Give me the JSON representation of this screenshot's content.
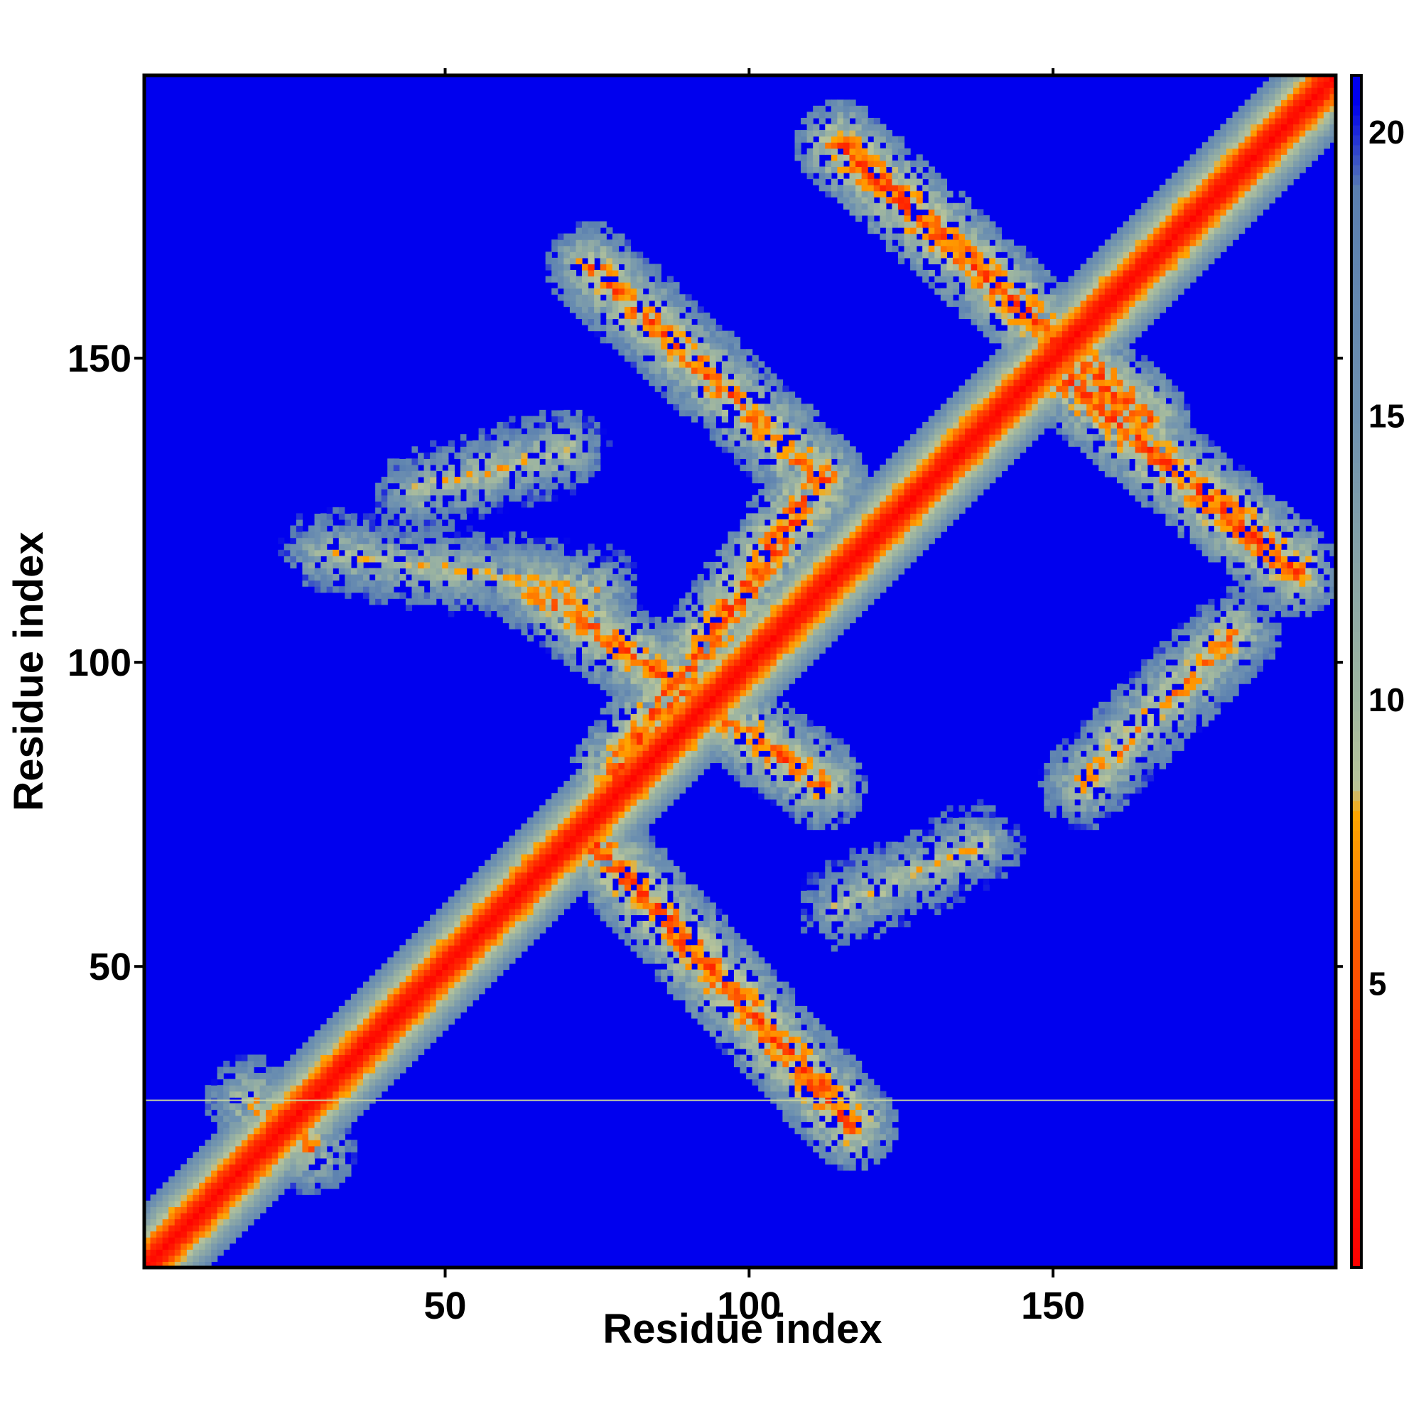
{
  "chart_data": {
    "type": "heatmap",
    "title": "",
    "xlabel": "Residue index",
    "ylabel": "Residue index",
    "n_residues": 196,
    "xlim": [
      1,
      196
    ],
    "ylim": [
      1,
      196
    ],
    "x_ticks": [
      50,
      100,
      150
    ],
    "y_ticks": [
      50,
      100,
      150
    ],
    "colorbar": {
      "ticks": [
        5,
        10,
        15,
        20
      ],
      "range": [
        0,
        21
      ],
      "stops": [
        {
          "value": 0,
          "color": "#ff0000"
        },
        {
          "value": 4,
          "color": "#ff2a00"
        },
        {
          "value": 7,
          "color": "#ff8c00"
        },
        {
          "value": 8,
          "color": "#ffa500"
        },
        {
          "value": 8.5,
          "color": "#b8c49a"
        },
        {
          "value": 10,
          "color": "#9fb6a0"
        },
        {
          "value": 15,
          "color": "#6e91b0"
        },
        {
          "value": 19,
          "color": "#5a7fb0"
        },
        {
          "value": 20.5,
          "color": "#0000ee"
        },
        {
          "value": 21,
          "color": "#0000ee"
        }
      ]
    },
    "background_value": 21,
    "diagonal_band": {
      "core_distance": 0,
      "halfwidth": 10
    },
    "contact_bands": [
      {
        "from": [
          75,
          70
        ],
        "to": [
          117,
          24
        ],
        "peak_distance": 5
      },
      {
        "from": [
          78,
          82
        ],
        "to": [
          112,
          130
        ],
        "peak_distance": 5
      },
      {
        "from": [
          65,
          112
        ],
        "to": [
          112,
          80
        ],
        "peak_distance": 6
      },
      {
        "from": [
          112,
          130
        ],
        "to": [
          74,
          165
        ],
        "peak_distance": 6
      },
      {
        "from": [
          115,
          185
        ],
        "to": [
          165,
          140
        ],
        "peak_distance": 5
      },
      {
        "from": [
          150,
          148
        ],
        "to": [
          190,
          115
        ],
        "peak_distance": 5
      },
      {
        "from": [
          155,
          80
        ],
        "to": [
          180,
          105
        ],
        "peak_distance": 7
      },
      {
        "from": [
          30,
          118
        ],
        "to": [
          75,
          112
        ],
        "peak_distance": 9
      },
      {
        "from": [
          45,
          128
        ],
        "to": [
          70,
          135
        ],
        "peak_distance": 9
      },
      {
        "from": [
          115,
          60
        ],
        "to": [
          138,
          70
        ],
        "peak_distance": 9
      },
      {
        "from": [
          18,
          28
        ],
        "to": [
          28,
          20
        ],
        "peak_distance": 7
      }
    ],
    "horizontal_line_y": 28
  }
}
